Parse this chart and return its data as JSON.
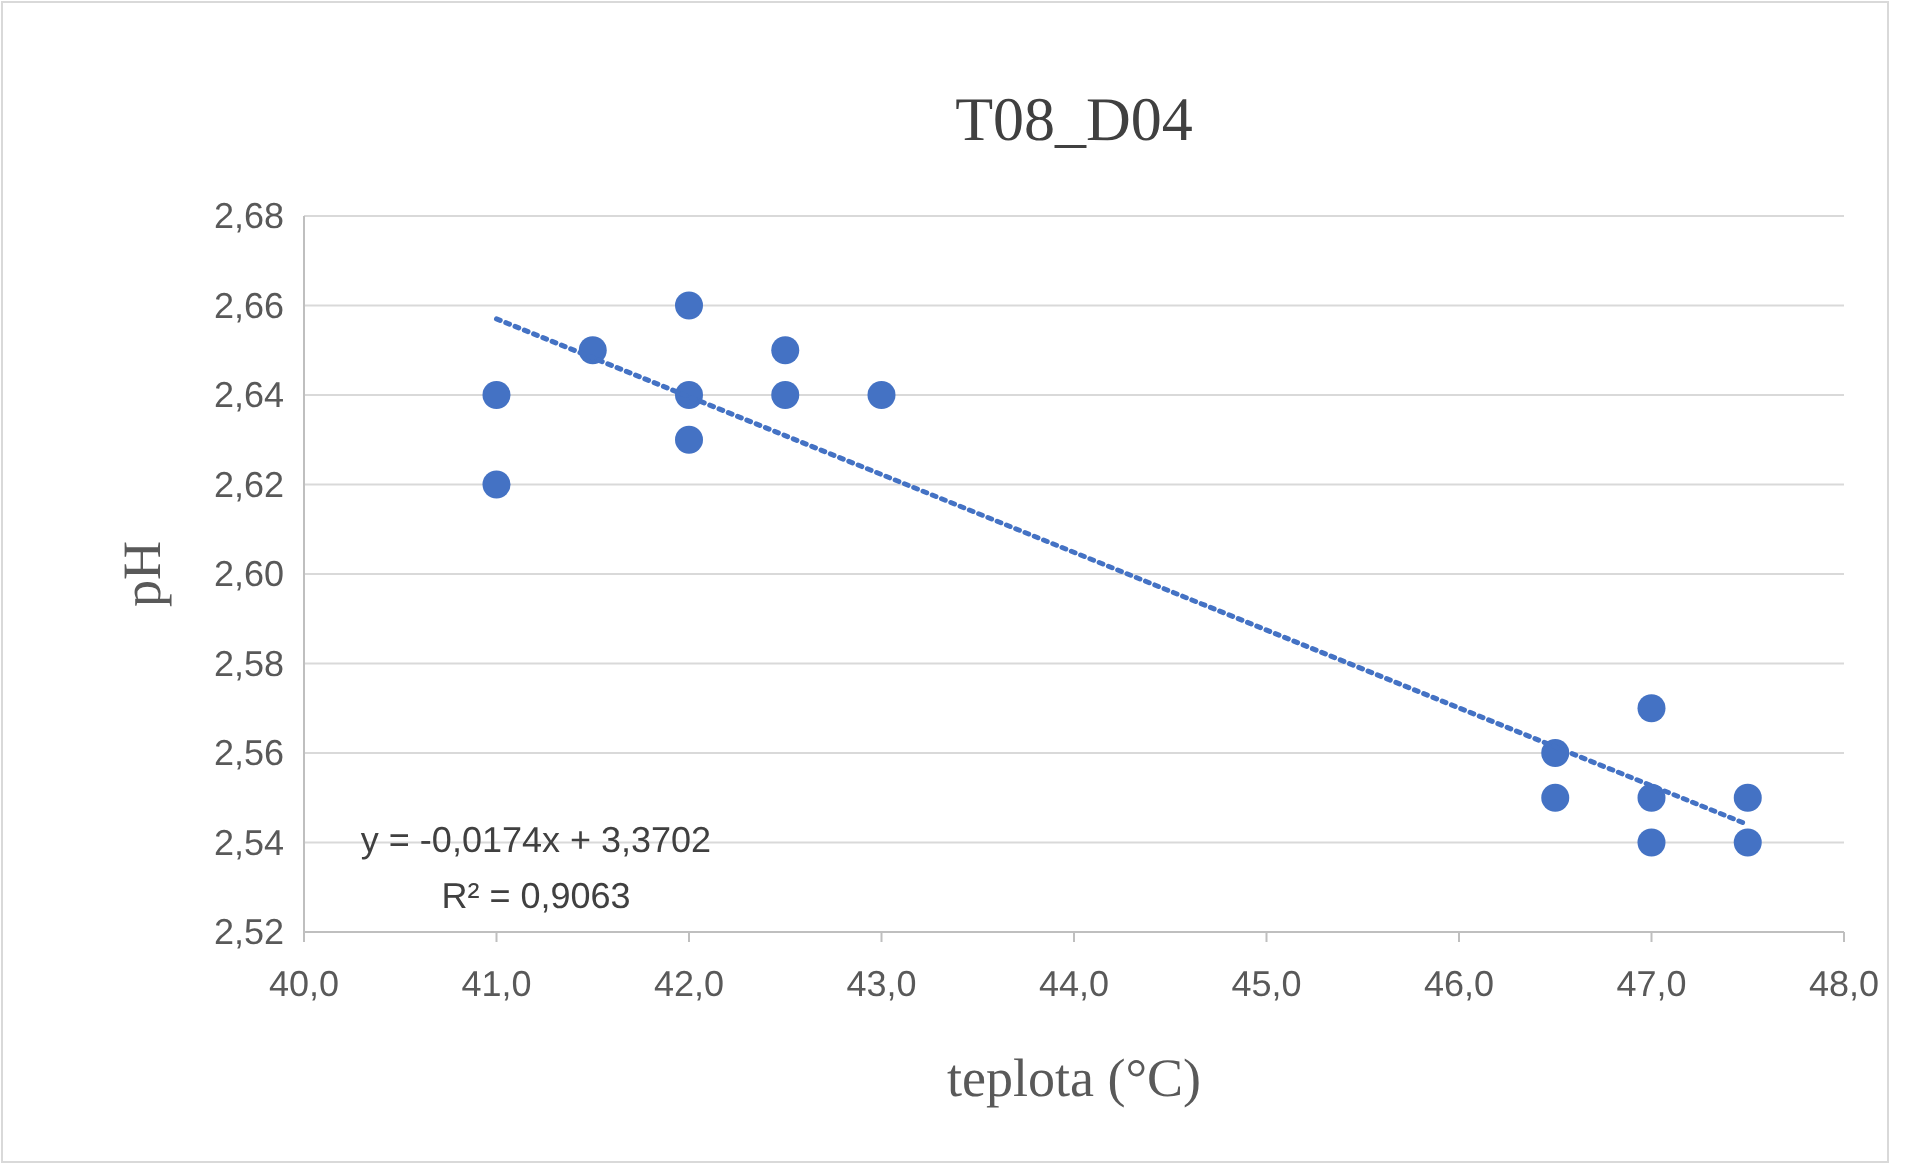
{
  "chart_data": {
    "type": "scatter",
    "title": "T08_D04",
    "xlabel": "teplota (°C)",
    "ylabel": "pH",
    "xlim": [
      40,
      48
    ],
    "xticks": [
      {
        "value": 40,
        "label": "40,0"
      },
      {
        "value": 41,
        "label": "41,0"
      },
      {
        "value": 42,
        "label": "42,0"
      },
      {
        "value": 43,
        "label": "43,0"
      },
      {
        "value": 44,
        "label": "44,0"
      },
      {
        "value": 45,
        "label": "45,0"
      },
      {
        "value": 46,
        "label": "46,0"
      },
      {
        "value": 47,
        "label": "47,0"
      },
      {
        "value": 48,
        "label": "48,0"
      }
    ],
    "ylim": [
      2.52,
      2.68
    ],
    "yticks": [
      {
        "value": 2.52,
        "label": "2,52"
      },
      {
        "value": 2.54,
        "label": "2,54"
      },
      {
        "value": 2.56,
        "label": "2,56"
      },
      {
        "value": 2.58,
        "label": "2,58"
      },
      {
        "value": 2.6,
        "label": "2,60"
      },
      {
        "value": 2.62,
        "label": "2,62"
      },
      {
        "value": 2.64,
        "label": "2,64"
      },
      {
        "value": 2.66,
        "label": "2,66"
      },
      {
        "value": 2.68,
        "label": "2,68"
      }
    ],
    "grid": "y",
    "marker": "circle",
    "series": [
      {
        "color": "#4472c4",
        "x": [
          41,
          41,
          41.5,
          42,
          42,
          42,
          42.5,
          42.5,
          43,
          46.5,
          46.5,
          47,
          47,
          47,
          47.5,
          47.5
        ],
        "values": [
          2.64,
          2.62,
          2.65,
          2.66,
          2.64,
          2.63,
          2.65,
          2.64,
          2.64,
          2.56,
          2.55,
          2.57,
          2.55,
          2.54,
          2.55,
          2.54
        ]
      },
      {
        "type": "line",
        "color": "#4472c4",
        "line_style": "dotted",
        "marker": "none",
        "x": [
          41,
          47.5
        ],
        "values": [
          2.657,
          2.544
        ]
      }
    ],
    "annotations": [
      "y = -0,0174x + 3,3702",
      "R² = 0,9063"
    ]
  }
}
